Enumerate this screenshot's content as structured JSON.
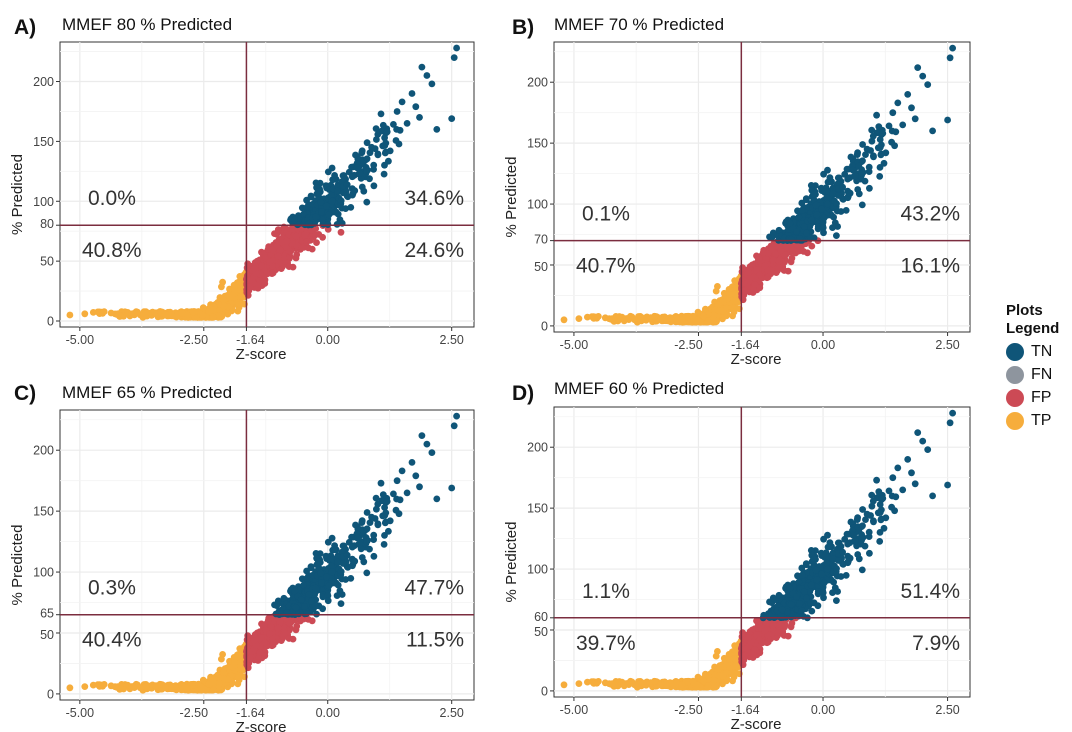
{
  "colors": {
    "TN": "#0f5578",
    "FN": "#8e959e",
    "FP": "#cc4a55",
    "TP": "#f6ad3c",
    "threshold_line": "#7b2d3f",
    "panel_bg": "#ffffff",
    "grid": "#ebebeb"
  },
  "legend": {
    "title_line1": "Plots",
    "title_line2": "Legend",
    "items": [
      {
        "key": "TN",
        "label": "TN"
      },
      {
        "key": "FN",
        "label": "FN"
      },
      {
        "key": "FP",
        "label": "FP"
      },
      {
        "key": "TP",
        "label": "TP"
      }
    ]
  },
  "chart_data": [
    {
      "type": "scatter",
      "letter": "A)",
      "title": "MMEF 80 % Predicted",
      "xlabel": "Z-score",
      "ylabel": "% Predicted",
      "xlim": [
        -5.4,
        2.95
      ],
      "ylim": [
        -5,
        233
      ],
      "x_ticks": [
        -5.0,
        -2.5,
        -1.64,
        0.0,
        2.5
      ],
      "x_tick_labels": [
        "-5.00",
        "-2.50",
        "-1.64",
        "0.00",
        "2.50"
      ],
      "y_ticks": [
        0,
        50,
        80,
        100,
        150,
        200
      ],
      "y_tick_labels": [
        "0",
        "50",
        "80",
        "100",
        "150",
        "200"
      ],
      "z_threshold": -1.64,
      "pp_threshold": 80,
      "quadrant_percents": {
        "upper_left": "0.0%",
        "upper_right": "34.6%",
        "lower_left": "40.8%",
        "lower_right": "24.6%"
      }
    },
    {
      "type": "scatter",
      "letter": "B)",
      "title": "MMEF 70 % Predicted",
      "xlabel": "Z-score",
      "ylabel": "% Predicted",
      "xlim": [
        -5.4,
        2.95
      ],
      "ylim": [
        -5,
        233
      ],
      "x_ticks": [
        -5.0,
        -2.5,
        -1.64,
        0.0,
        2.5
      ],
      "x_tick_labels": [
        "-5.00",
        "-2.50",
        "-1.64",
        "0.00",
        "2.50"
      ],
      "y_ticks": [
        0,
        50,
        70,
        100,
        150,
        200
      ],
      "y_tick_labels": [
        "0",
        "50",
        "70",
        "100",
        "150",
        "200"
      ],
      "z_threshold": -1.64,
      "pp_threshold": 70,
      "quadrant_percents": {
        "upper_left": "0.1%",
        "upper_right": "43.2%",
        "lower_left": "40.7%",
        "lower_right": "16.1%"
      }
    },
    {
      "type": "scatter",
      "letter": "C)",
      "title": "MMEF 65 % Predicted",
      "xlabel": "Z-score",
      "ylabel": "% Predicted",
      "xlim": [
        -5.4,
        2.95
      ],
      "ylim": [
        -5,
        233
      ],
      "x_ticks": [
        -5.0,
        -2.5,
        -1.64,
        0.0,
        2.5
      ],
      "x_tick_labels": [
        "-5.00",
        "-2.50",
        "-1.64",
        "0.00",
        "2.50"
      ],
      "y_ticks": [
        0,
        50,
        65,
        100,
        150,
        200
      ],
      "y_tick_labels": [
        "0",
        "50",
        "65",
        "100",
        "150",
        "200"
      ],
      "z_threshold": -1.64,
      "pp_threshold": 65,
      "quadrant_percents": {
        "upper_left": "0.3%",
        "upper_right": "47.7%",
        "lower_left": "40.4%",
        "lower_right": "11.5%"
      }
    },
    {
      "type": "scatter",
      "letter": "D)",
      "title": "MMEF 60 % Predicted",
      "xlabel": "Z-score",
      "ylabel": "% Predicted",
      "xlim": [
        -5.4,
        2.95
      ],
      "ylim": [
        -5,
        233
      ],
      "x_ticks": [
        -5.0,
        -2.5,
        -1.64,
        0.0,
        2.5
      ],
      "x_tick_labels": [
        "-5.00",
        "-2.50",
        "-1.64",
        "0.00",
        "2.50"
      ],
      "y_ticks": [
        0,
        50,
        60,
        100,
        150,
        200
      ],
      "y_tick_labels": [
        "0",
        "50",
        "60",
        "100",
        "150",
        "200"
      ],
      "z_threshold": -1.64,
      "pp_threshold": 60,
      "quadrant_percents": {
        "upper_left": "1.1%",
        "upper_right": "51.4%",
        "lower_left": "39.7%",
        "lower_right": "7.9%"
      }
    }
  ]
}
